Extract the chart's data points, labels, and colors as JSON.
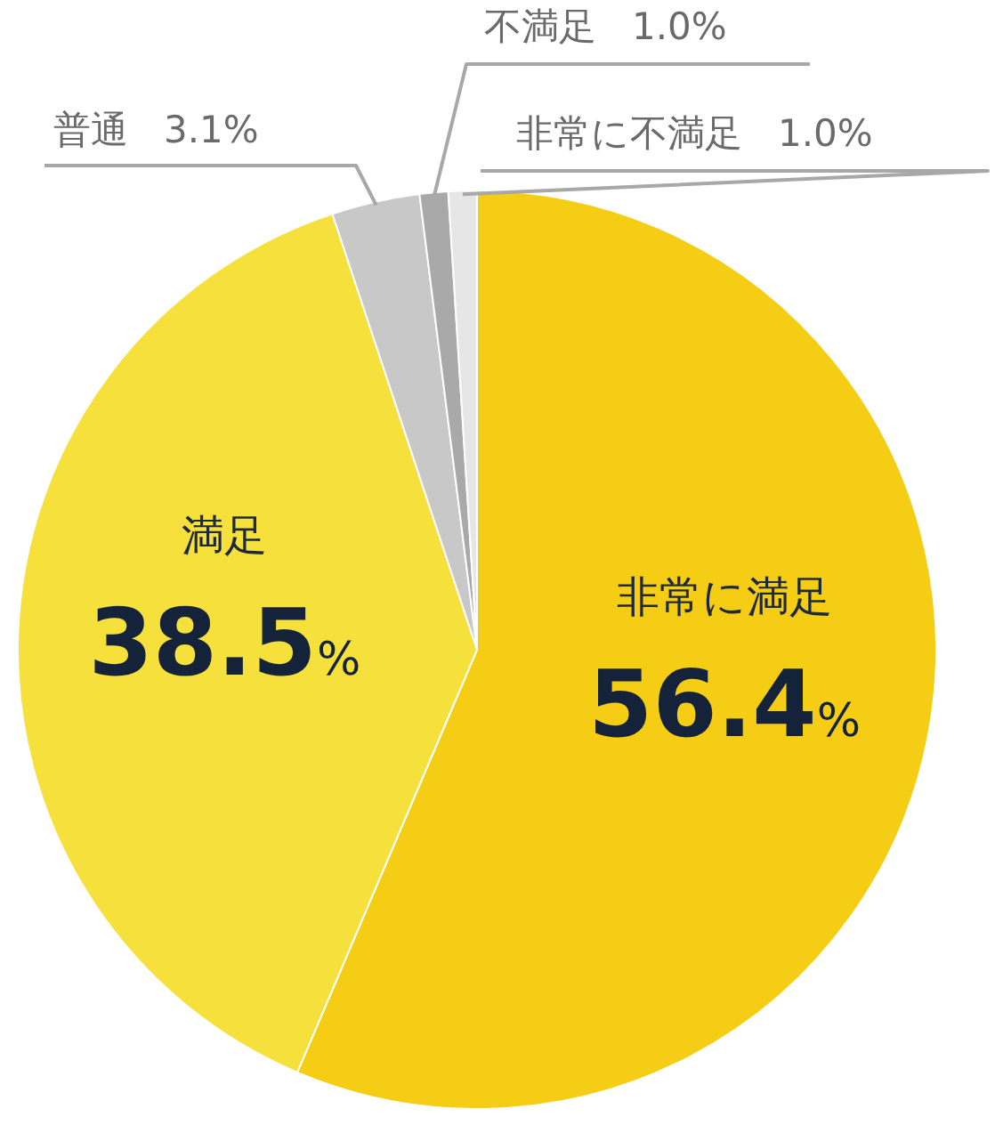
{
  "chart_data": {
    "type": "pie",
    "categories": [
      "非常に満足",
      "満足",
      "普通",
      "不満足",
      "非常に不満足"
    ],
    "values": [
      56.4,
      38.5,
      3.1,
      1.0,
      1.0
    ],
    "colors": [
      "#f5cd14",
      "#f5e03c",
      "#c8c8c8",
      "#a9a9a9",
      "#e6e6e6"
    ],
    "value_labels": [
      "56.4%",
      "38.5%",
      "3.1%",
      "1.0%",
      "1.0%"
    ],
    "legend": false
  }
}
